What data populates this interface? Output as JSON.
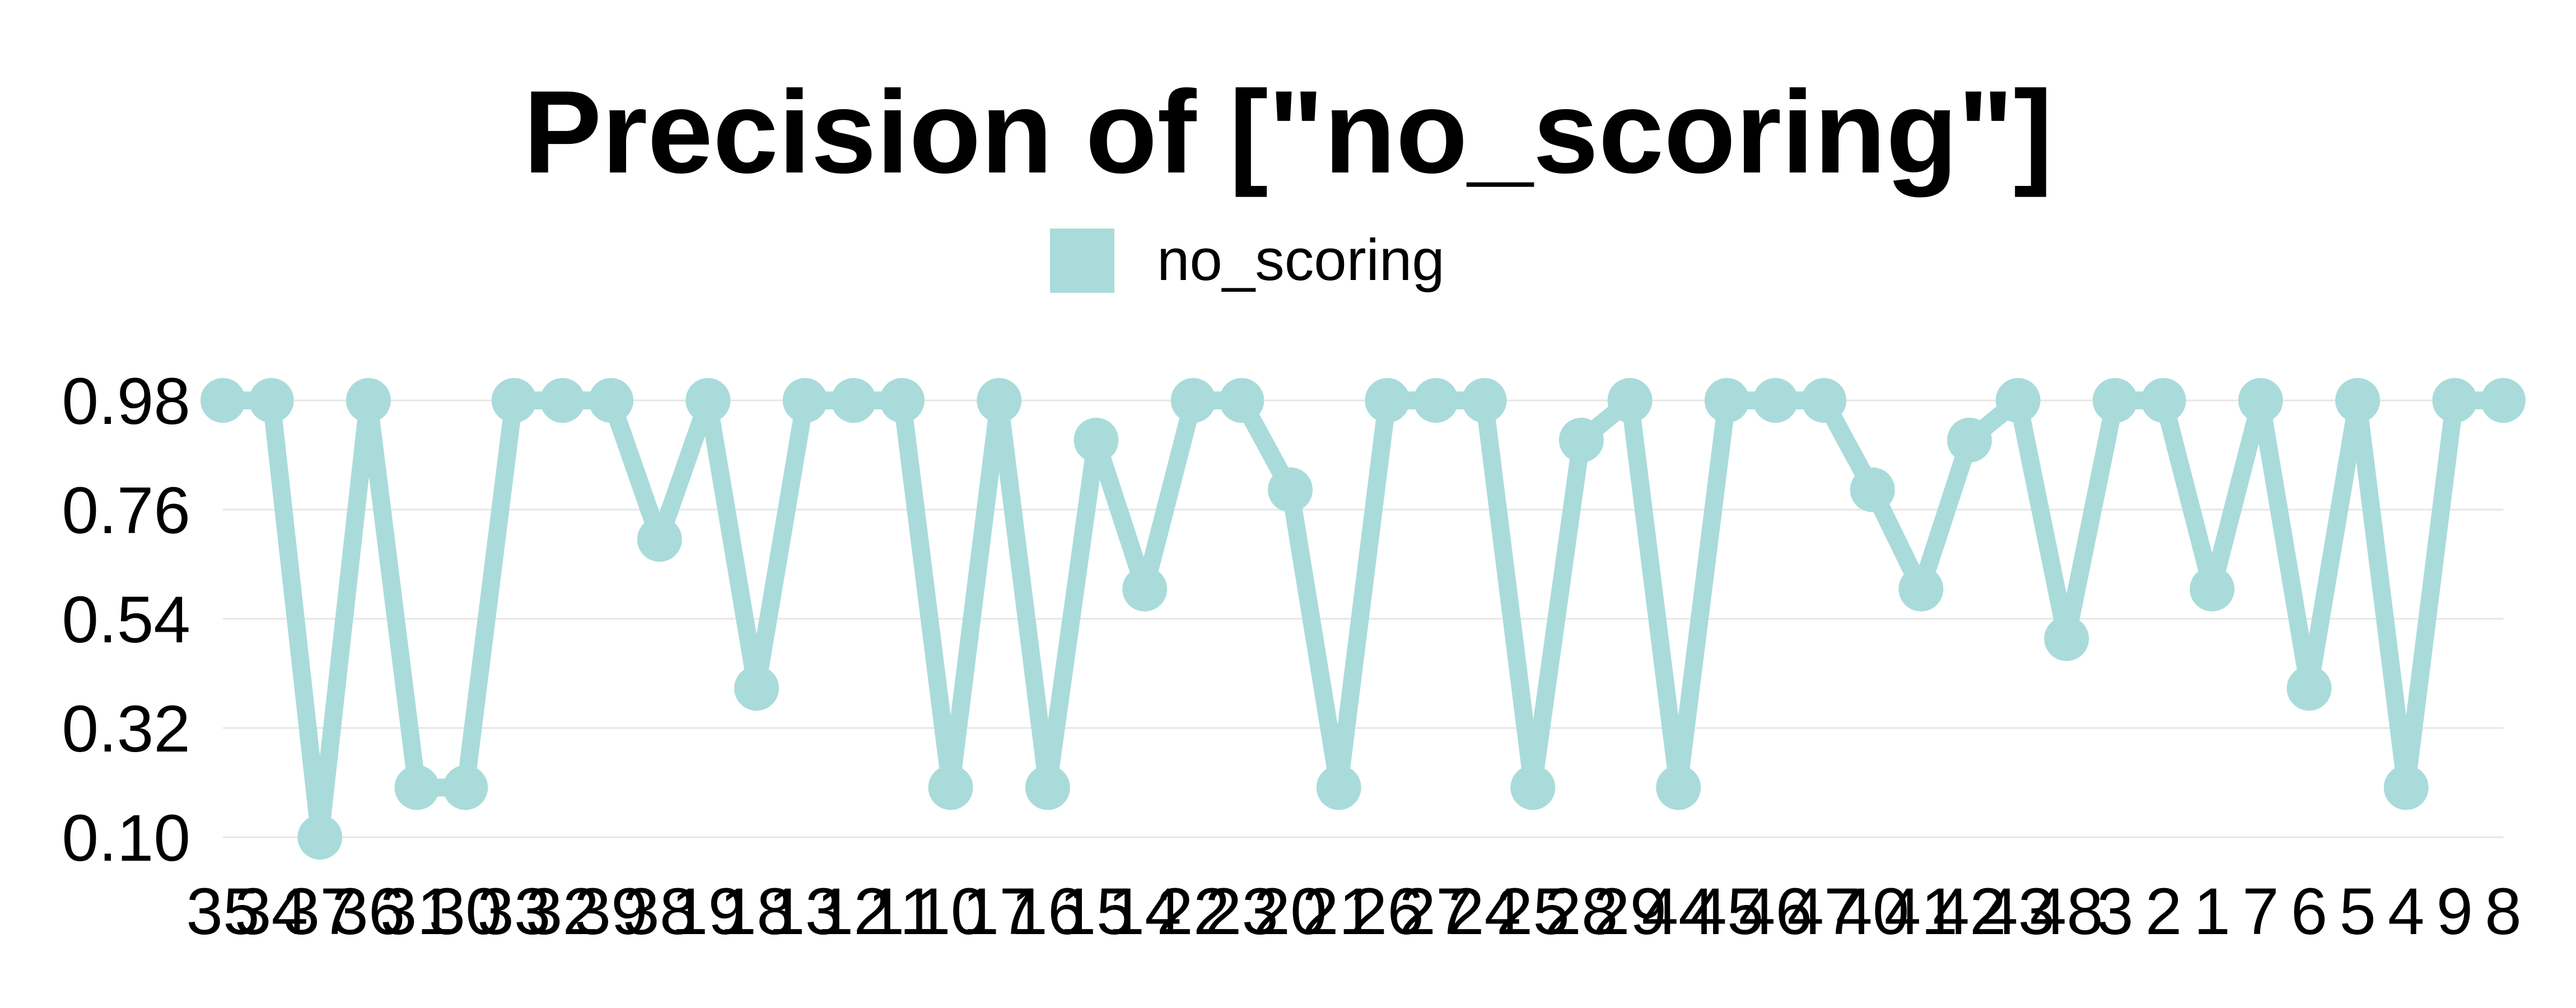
{
  "chart_data": {
    "type": "line",
    "title": "Precision of [\"no_scoring\"]",
    "xlabel": "",
    "ylabel": "",
    "legend_position": "top-center",
    "grid": true,
    "color": "#aadbdb",
    "ylim": [
      0.1,
      0.98
    ],
    "yticks": [
      "0.98",
      "0.76",
      "0.54",
      "0.32",
      "0.10"
    ],
    "ytick_values": [
      0.98,
      0.76,
      0.54,
      0.32,
      0.1
    ],
    "series": [
      {
        "name": "no_scoring",
        "categories": [
          "35",
          "34",
          "37",
          "36",
          "31",
          "30",
          "33",
          "32",
          "39",
          "38",
          "19",
          "18",
          "13",
          "12",
          "11",
          "10",
          "17",
          "16",
          "15",
          "14",
          "22",
          "23",
          "20",
          "21",
          "26",
          "27",
          "24",
          "25",
          "28",
          "29",
          "44",
          "45",
          "46",
          "47",
          "40",
          "41",
          "42",
          "43",
          "48",
          "3",
          "2",
          "1",
          "7",
          "6",
          "5",
          "4",
          "9",
          "8"
        ],
        "values": [
          0.98,
          0.98,
          0.1,
          0.98,
          0.2,
          0.2,
          0.98,
          0.98,
          0.98,
          0.7,
          0.98,
          0.4,
          0.98,
          0.98,
          0.98,
          0.2,
          0.98,
          0.2,
          0.9,
          0.6,
          0.98,
          0.98,
          0.8,
          0.2,
          0.98,
          0.98,
          0.98,
          0.2,
          0.9,
          0.98,
          0.2,
          0.98,
          0.98,
          0.98,
          0.8,
          0.6,
          0.9,
          0.98,
          0.5,
          0.98,
          0.98,
          0.6,
          0.98,
          0.4,
          0.98,
          0.2,
          0.98,
          0.98
        ]
      }
    ]
  }
}
